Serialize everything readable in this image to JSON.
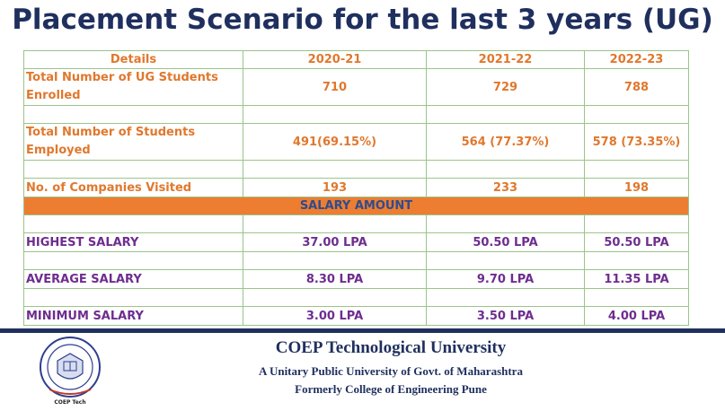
{
  "title": "Placement Scenario for the last 3 years (UG)",
  "table": {
    "header": [
      "Details",
      "2020-21",
      "2021-22",
      "2022-23"
    ],
    "rows": [
      {
        "label": "Total Number of UG Students Enrolled",
        "values": [
          "710",
          "729",
          "788"
        ]
      },
      {
        "label": "Total Number of Students Employed",
        "values": [
          "491(69.15%)",
          "564 (77.37%)",
          "578 (73.35%)"
        ]
      },
      {
        "label": "No. of Companies Visited",
        "values": [
          "193",
          "233",
          "198"
        ]
      }
    ],
    "salary_band": "SALARY AMOUNT",
    "salary_rows": [
      {
        "label": "HIGHEST SALARY",
        "values": [
          "37.00 LPA",
          "50.50 LPA",
          "50.50 LPA"
        ]
      },
      {
        "label": "AVERAGE SALARY",
        "values": [
          "8.30 LPA",
          "9.70 LPA",
          "11.35 LPA"
        ]
      },
      {
        "label": "MINIMUM SALARY",
        "values": [
          "3.00 LPA",
          "3.50 LPA",
          "4.00 LPA"
        ]
      }
    ]
  },
  "footer": {
    "university": "COEP Technological University",
    "line1": "A Unitary Public University of Govt. of Maharashtra",
    "line2": "Formerly College of Engineering Pune",
    "logo_text": "COEP Tech"
  }
}
